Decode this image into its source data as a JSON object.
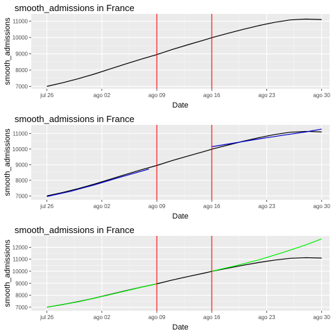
{
  "chart_data": [
    {
      "type": "line",
      "title": "smooth_admissions in France",
      "xlabel": "Date",
      "ylabel": "smooth_admissions",
      "x_ticks": [
        "jul 26",
        "ago 02",
        "ago 09",
        "ago 16",
        "ago 23",
        "ago 30"
      ],
      "y_ticks": [
        7000,
        8000,
        9000,
        10000,
        11000
      ],
      "xlim": [
        "2020-07-24",
        "2020-08-31"
      ],
      "ylim": [
        6850,
        11450
      ],
      "vlines": {
        "color": "#ff0000",
        "x": [
          "2020-08-09",
          "2020-08-16"
        ]
      },
      "grid": true,
      "series": [
        {
          "color": "#000000",
          "x": [
            "2020-07-26",
            "2020-07-28",
            "2020-07-30",
            "2020-08-01",
            "2020-08-03",
            "2020-08-05",
            "2020-08-07",
            "2020-08-09",
            "2020-08-11",
            "2020-08-13",
            "2020-08-15",
            "2020-08-16",
            "2020-08-18",
            "2020-08-20",
            "2020-08-22",
            "2020-08-24",
            "2020-08-26",
            "2020-08-28",
            "2020-08-30"
          ],
          "y": [
            7000,
            7220,
            7470,
            7750,
            8060,
            8370,
            8670,
            8950,
            9270,
            9560,
            9840,
            9990,
            10250,
            10500,
            10730,
            10930,
            11080,
            11130,
            11100
          ]
        }
      ]
    },
    {
      "type": "line",
      "title": "smooth_admissions in France",
      "xlabel": "Date",
      "ylabel": "smooth_admissions",
      "x_ticks": [
        "jul 26",
        "ago 02",
        "ago 09",
        "ago 16",
        "ago 23",
        "ago 30"
      ],
      "y_ticks": [
        7000,
        8000,
        9000,
        10000,
        11000
      ],
      "xlim": [
        "2020-07-24",
        "2020-08-31"
      ],
      "ylim": [
        6750,
        11550
      ],
      "vlines": {
        "color": "#ff0000",
        "x": [
          "2020-08-09",
          "2020-08-16"
        ]
      },
      "grid": true,
      "series": [
        {
          "color": "#000000",
          "x": [
            "2020-07-26",
            "2020-07-28",
            "2020-07-30",
            "2020-08-01",
            "2020-08-03",
            "2020-08-05",
            "2020-08-07",
            "2020-08-09",
            "2020-08-11",
            "2020-08-13",
            "2020-08-15",
            "2020-08-16",
            "2020-08-18",
            "2020-08-20",
            "2020-08-22",
            "2020-08-24",
            "2020-08-26",
            "2020-08-28",
            "2020-08-30"
          ],
          "y": [
            7000,
            7220,
            7470,
            7750,
            8060,
            8370,
            8670,
            8950,
            9270,
            9560,
            9840,
            9990,
            10250,
            10500,
            10730,
            10930,
            11080,
            11130,
            11100
          ]
        },
        {
          "color": "#0000cc",
          "x": [
            "2020-07-26",
            "2020-07-29",
            "2020-08-01",
            "2020-08-04",
            "2020-08-08"
          ],
          "y": [
            6960,
            7290,
            7700,
            8150,
            8720
          ]
        },
        {
          "color": "#0000cc",
          "x": [
            "2020-08-16",
            "2020-08-19",
            "2020-08-22",
            "2020-08-25",
            "2020-08-28",
            "2020-08-30"
          ],
          "y": [
            10150,
            10400,
            10650,
            10880,
            11100,
            11280
          ]
        }
      ]
    },
    {
      "type": "line",
      "title": "smooth_admissions in France",
      "xlabel": "Date",
      "ylabel": "smooth_admissions",
      "x_ticks": [
        "jul 26",
        "ago 02",
        "ago 09",
        "ago 16",
        "ago 23",
        "ago 30"
      ],
      "y_ticks": [
        7000,
        8000,
        9000,
        10000,
        11000,
        12000
      ],
      "xlim": [
        "2020-07-24",
        "2020-08-31"
      ],
      "ylim": [
        6700,
        12950
      ],
      "vlines": {
        "color": "#ff0000",
        "x": [
          "2020-08-09",
          "2020-08-16"
        ]
      },
      "grid": true,
      "series": [
        {
          "color": "#000000",
          "x": [
            "2020-07-26",
            "2020-07-28",
            "2020-07-30",
            "2020-08-01",
            "2020-08-03",
            "2020-08-05",
            "2020-08-07",
            "2020-08-09",
            "2020-08-11",
            "2020-08-13",
            "2020-08-15",
            "2020-08-16",
            "2020-08-18",
            "2020-08-20",
            "2020-08-22",
            "2020-08-24",
            "2020-08-26",
            "2020-08-28",
            "2020-08-30"
          ],
          "y": [
            7000,
            7220,
            7470,
            7750,
            8060,
            8370,
            8670,
            8950,
            9270,
            9560,
            9840,
            9990,
            10250,
            10500,
            10730,
            10930,
            11080,
            11130,
            11100
          ]
        },
        {
          "color": "#00ee00",
          "x": [
            "2020-07-26",
            "2020-07-30",
            "2020-08-03",
            "2020-08-07",
            "2020-08-09"
          ],
          "y": [
            7000,
            7450,
            8040,
            8660,
            8950
          ]
        },
        {
          "color": "#00ee00",
          "x": [
            "2020-08-16",
            "2020-08-19",
            "2020-08-22",
            "2020-08-25",
            "2020-08-28",
            "2020-08-30"
          ],
          "y": [
            10000,
            10450,
            10950,
            11550,
            12200,
            12700
          ]
        }
      ]
    }
  ]
}
